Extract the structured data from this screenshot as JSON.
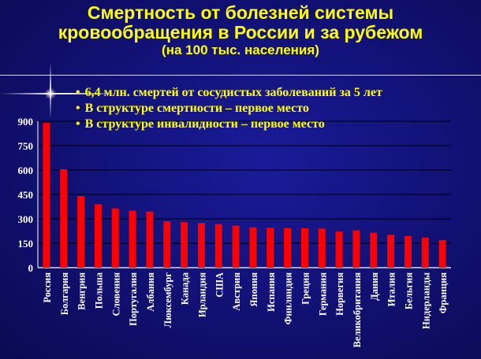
{
  "title": {
    "line1": "Смертность от болезней системы",
    "line2": "кровообращения в России и за рубежом",
    "line3": "(на 100 тыс. населения)"
  },
  "bullets": [
    "6,4 млн. смертей от сосудистых заболеваний за 5 лет",
    "В структуре смертности – первое место",
    "В структуре инвалидности – первое место"
  ],
  "colors": {
    "bar": "#ff0000",
    "title": "#ffff00",
    "axis_text": "#ffffff"
  },
  "chart_data": {
    "type": "bar",
    "categories": [
      "Россия",
      "Болгария",
      "Венгрия",
      "Польша",
      "Словения",
      "Португалия",
      "Албания",
      "Люксембург",
      "Канада",
      "Ирландия",
      "США",
      "Австрия",
      "Япония",
      "Испания",
      "Финляндия",
      "Греция",
      "Германия",
      "Норвегия",
      "Великобритания",
      "Дания",
      "Италия",
      "Бельгия",
      "Нидерланды",
      "Франция"
    ],
    "values": [
      890,
      605,
      440,
      390,
      365,
      350,
      345,
      285,
      280,
      275,
      268,
      258,
      248,
      245,
      243,
      242,
      240,
      222,
      230,
      215,
      202,
      195,
      185,
      170
    ],
    "yticks": [
      0,
      150,
      300,
      450,
      600,
      750,
      900
    ],
    "ylim": [
      0,
      900
    ],
    "grid": true
  }
}
